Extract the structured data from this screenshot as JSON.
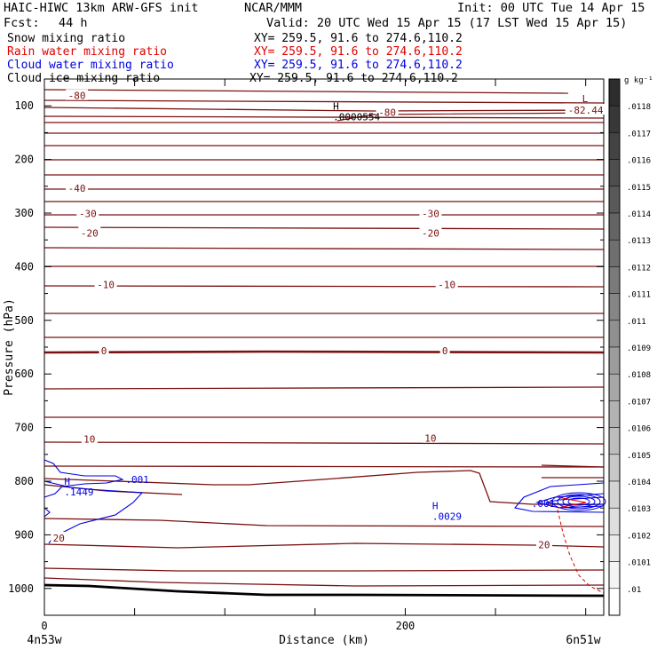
{
  "header": {
    "model": "HAIC-HIWC 13km ARW-GFS init",
    "org": "NCAR/MMM",
    "init": "Init: 00 UTC Tue 14 Apr 15",
    "fcst_label": "Fcst:",
    "fcst_value": "44 h",
    "valid": "Valid: 20 UTC Wed 15 Apr 15 (17 LST Wed 15 Apr 15)"
  },
  "fields": [
    {
      "name": "Snow mixing ratio",
      "xy": "XY= 259.5, 91.6 to 274.6,110.2",
      "color": "#000000"
    },
    {
      "name": "Rain water mixing ratio",
      "xy": "XY= 259.5, 91.6 to 274.6,110.2",
      "color": "#e00000"
    },
    {
      "name": "Cloud water mixing ratio",
      "xy": "XY= 259.5, 91.6 to 274.6,110.2",
      "color": "#0000e0"
    },
    {
      "name": "Cloud ice mixing ratio",
      "xy": "XY= 259.5, 91.6 to 274.6,110.2",
      "color": "#000000"
    }
  ],
  "colors": {
    "temperature": "#7a1010",
    "cloud_water": "#0000e0",
    "rain": "#e00000",
    "terrain": "#000000"
  },
  "chart_data": {
    "type": "line",
    "title": "",
    "xlabel": "Distance (km)",
    "ylabel": "Pressure (hPa)",
    "x_ticks": [
      0,
      200
    ],
    "xlim": [
      0,
      310
    ],
    "y_ticks": [
      100,
      200,
      300,
      400,
      500,
      600,
      700,
      800,
      900,
      1000
    ],
    "ylim": [
      50,
      1050
    ],
    "x_endpoints": {
      "left": "4n53w",
      "right": "6n51w"
    },
    "colorbar": {
      "unit": "g kg⁻¹",
      "labels": [
        ".0118",
        ".0117",
        ".0116",
        ".0115",
        ".0114",
        ".0113",
        ".0112",
        ".0111",
        ".011",
        ".0109",
        ".0108",
        ".0107",
        ".0106",
        ".0105",
        ".0104",
        ".0103",
        ".0102",
        ".0101",
        ".01"
      ]
    },
    "isotherm_labels": [
      {
        "text": "-80",
        "x": 18,
        "p": 81
      },
      {
        "text": "-80",
        "x": 190,
        "p": 112
      },
      {
        "text": "-82.44",
        "x": 300,
        "p": 108
      },
      {
        "text": "-40",
        "x": 18,
        "p": 254
      },
      {
        "text": "-30",
        "x": 24,
        "p": 301
      },
      {
        "text": "-30",
        "x": 214,
        "p": 301
      },
      {
        "text": "-20",
        "x": 25,
        "p": 337
      },
      {
        "text": "-20",
        "x": 214,
        "p": 337
      },
      {
        "text": "-10",
        "x": 34,
        "p": 433
      },
      {
        "text": "-10",
        "x": 223,
        "p": 433
      },
      {
        "text": "0",
        "x": 33,
        "p": 557
      },
      {
        "text": "0",
        "x": 222,
        "p": 557
      },
      {
        "text": "10",
        "x": 25,
        "p": 721
      },
      {
        "text": "10",
        "x": 214,
        "p": 720
      },
      {
        "text": "20",
        "x": 8,
        "p": 906
      },
      {
        "text": "20",
        "x": 277,
        "p": 918
      }
    ],
    "extrema": [
      {
        "marker": "L",
        "value": "",
        "x": 298,
        "p": 93
      },
      {
        "marker": "H",
        "value": ".0000554",
        "x": 160,
        "p": 107
      },
      {
        "marker": "H",
        "value": ".1449",
        "x": 11,
        "p": 807
      },
      {
        "marker": "H",
        "value": ".0029",
        "x": 215,
        "p": 852
      }
    ],
    "cloud_labels": [
      {
        "text": ".001",
        "x": 45,
        "p": 803
      },
      {
        "text": ".001",
        "x": 270,
        "p": 848
      }
    ]
  }
}
